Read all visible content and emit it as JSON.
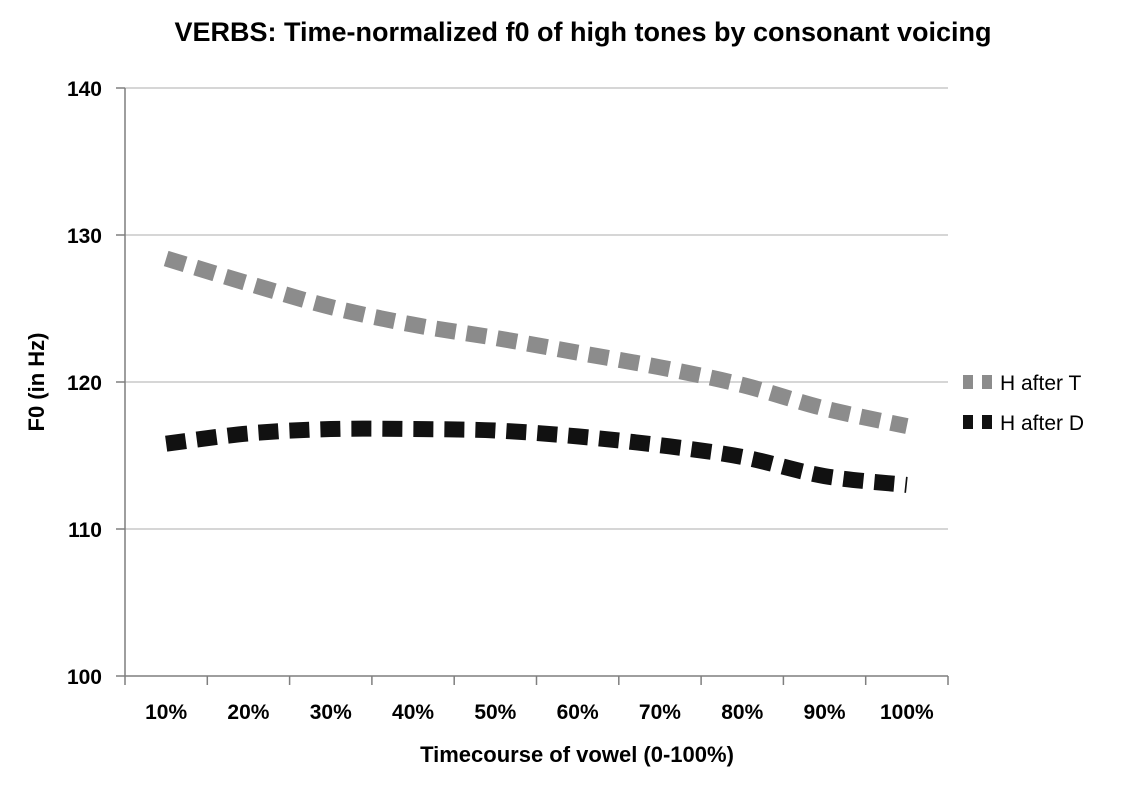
{
  "chart_data": {
    "type": "line",
    "title": "VERBS: Time-normalized f0 of high tones by consonant voicing",
    "xlabel": "Timecourse of vowel (0-100%)",
    "ylabel": "F0 (in Hz)",
    "categories": [
      "10%",
      "20%",
      "30%",
      "40%",
      "50%",
      "60%",
      "70%",
      "80%",
      "90%",
      "100%"
    ],
    "ylim": [
      100,
      140
    ],
    "yticks": [
      100,
      110,
      120,
      130,
      140
    ],
    "grid": true,
    "legend_position": "right",
    "series": [
      {
        "name": "H after T",
        "color": "#8c8c8c",
        "style": "dashed",
        "values": [
          128.4,
          126.7,
          125.1,
          123.9,
          123.0,
          122.0,
          121.0,
          119.8,
          118.2,
          117.0
        ]
      },
      {
        "name": "H after D",
        "color": "#111111",
        "style": "dashed",
        "values": [
          115.8,
          116.5,
          116.8,
          116.8,
          116.7,
          116.3,
          115.7,
          114.9,
          113.6,
          113.0
        ]
      }
    ]
  }
}
